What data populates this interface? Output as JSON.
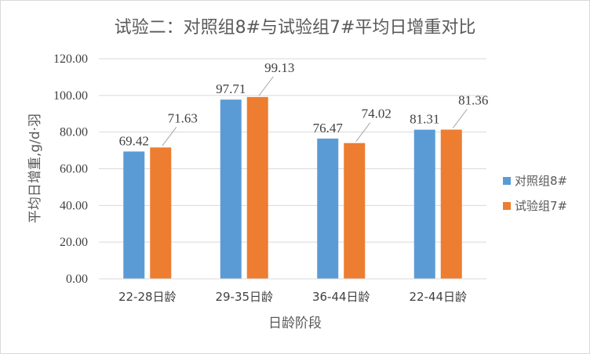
{
  "chart_data": {
    "type": "bar",
    "title": "试验二：对照组8#与试验组7#平均日增重对比",
    "xlabel": "日龄阶段",
    "ylabel": "平均日增重,g/d·羽",
    "categories": [
      "22-28日龄",
      "29-35日龄",
      "36-44日龄",
      "22-44日龄"
    ],
    "series": [
      {
        "name": "对照组8#",
        "color": "#5B9BD5",
        "values": [
          69.42,
          97.71,
          76.47,
          81.31
        ],
        "labels": [
          "69.42",
          "97.71",
          "76.47",
          "81.31"
        ]
      },
      {
        "name": "试验组7#",
        "color": "#ED7D31",
        "values": [
          71.63,
          99.13,
          74.02,
          81.36
        ],
        "labels": [
          "71.63",
          "99.13",
          "74.02",
          "81.36"
        ]
      }
    ],
    "ylim": [
      0,
      120
    ],
    "yticks": [
      0,
      20,
      40,
      60,
      80,
      100,
      120
    ],
    "ytick_labels": [
      "0.00",
      "20.00",
      "40.00",
      "60.00",
      "80.00",
      "100.00",
      "120.00"
    ],
    "grid": true,
    "legend": "right"
  }
}
